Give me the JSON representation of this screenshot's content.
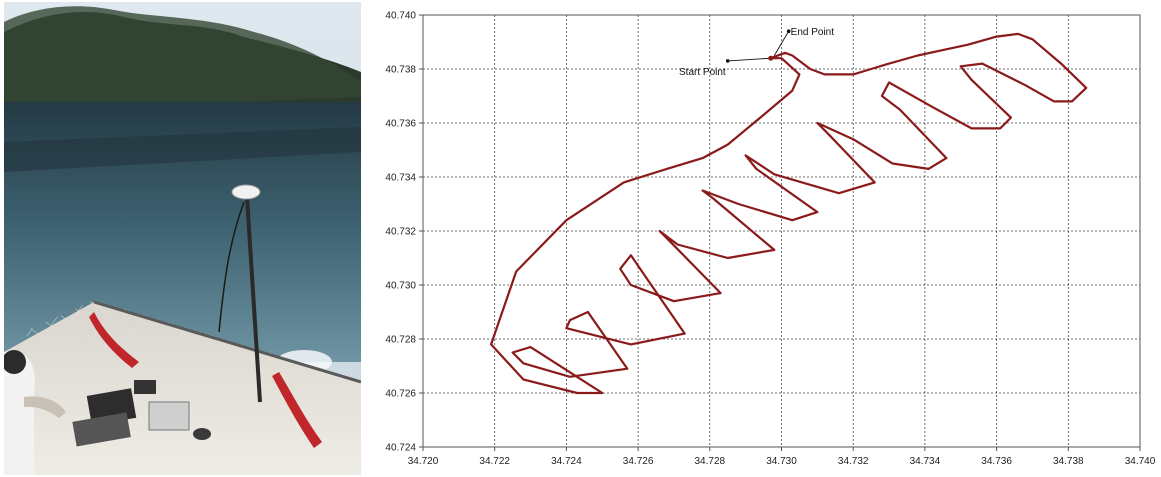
{
  "photo": {
    "icon": "boat-gps-survey-photo"
  },
  "chart_data": {
    "type": "line",
    "title": "",
    "xlabel": "",
    "ylabel": "",
    "xlim": [
      34.72,
      34.74
    ],
    "ylim": [
      40.724,
      40.74
    ],
    "xticks": [
      "34.720",
      "34.722",
      "34.724",
      "34.726",
      "34.728",
      "34.730",
      "34.732",
      "34.734",
      "34.736",
      "34.738",
      "34.740"
    ],
    "yticks": [
      "40.724",
      "40.726",
      "40.728",
      "40.730",
      "40.732",
      "40.734",
      "40.736",
      "40.738",
      "40.740"
    ],
    "grid": true,
    "line_color": "#8b1a1a",
    "series": [
      {
        "x": [
          34.7297,
          34.7301,
          34.7303,
          34.7308,
          34.7312,
          34.7316,
          34.732,
          34.7325,
          34.733,
          34.7338,
          34.7345,
          34.7352,
          34.736,
          34.7366,
          34.737,
          34.7378,
          34.7385,
          34.7381,
          34.7376,
          34.7368,
          34.7356,
          34.735,
          34.7353,
          34.7364,
          34.7361,
          34.7353,
          34.7342,
          34.733,
          34.7328,
          34.7333,
          34.7346,
          34.7341,
          34.7331,
          34.732,
          34.731,
          34.7313,
          34.7326,
          34.7316,
          34.7298,
          34.729,
          34.7293,
          34.731,
          34.7303,
          34.7288,
          34.7278,
          34.7281,
          34.7298,
          34.7285,
          34.7271,
          34.7266,
          34.7269,
          34.7283,
          34.727,
          34.7258,
          34.7255,
          34.7258,
          34.7273,
          34.7258,
          34.724,
          34.7241,
          34.7246,
          34.7257,
          34.7241,
          34.7228,
          34.7225,
          34.723,
          34.725,
          34.7243,
          34.7228,
          34.7219,
          34.7226,
          34.724,
          34.7256,
          34.7268,
          34.7278,
          34.7285,
          34.7295,
          34.7303,
          34.7305,
          34.73,
          34.7297
        ],
        "y": [
          40.7384,
          40.7386,
          40.7385,
          40.738,
          40.7378,
          40.7378,
          40.7378,
          40.738,
          40.7382,
          40.7385,
          40.7387,
          40.7389,
          40.7392,
          40.7393,
          40.7391,
          40.7382,
          40.7373,
          40.7368,
          40.7368,
          40.7374,
          40.7382,
          40.7381,
          40.7376,
          40.7362,
          40.7358,
          40.7358,
          40.7366,
          40.7375,
          40.737,
          40.7365,
          40.7347,
          40.7343,
          40.7345,
          40.7354,
          40.736,
          40.7356,
          40.7338,
          40.7334,
          40.7341,
          40.7348,
          40.7343,
          40.7327,
          40.7324,
          40.733,
          40.7335,
          40.7332,
          40.7313,
          40.731,
          40.7315,
          40.732,
          40.7316,
          40.7297,
          40.7294,
          40.73,
          40.7306,
          40.7311,
          40.7282,
          40.7278,
          40.7284,
          40.7287,
          40.729,
          40.7269,
          40.7266,
          40.7271,
          40.7275,
          40.7277,
          40.726,
          40.726,
          40.7265,
          40.7278,
          40.7305,
          40.7324,
          40.7338,
          40.7343,
          40.7347,
          40.7352,
          40.7363,
          40.7372,
          40.7378,
          40.7384,
          40.7384
        ]
      }
    ],
    "annotations": [
      {
        "label": "End Point",
        "x": 34.7302,
        "y": 40.7394,
        "target_x": 34.7298,
        "target_y": 40.7385
      },
      {
        "label": "Start Point",
        "x": 34.7285,
        "y": 40.7383,
        "target_x": 34.7297,
        "target_y": 40.7384
      }
    ]
  }
}
